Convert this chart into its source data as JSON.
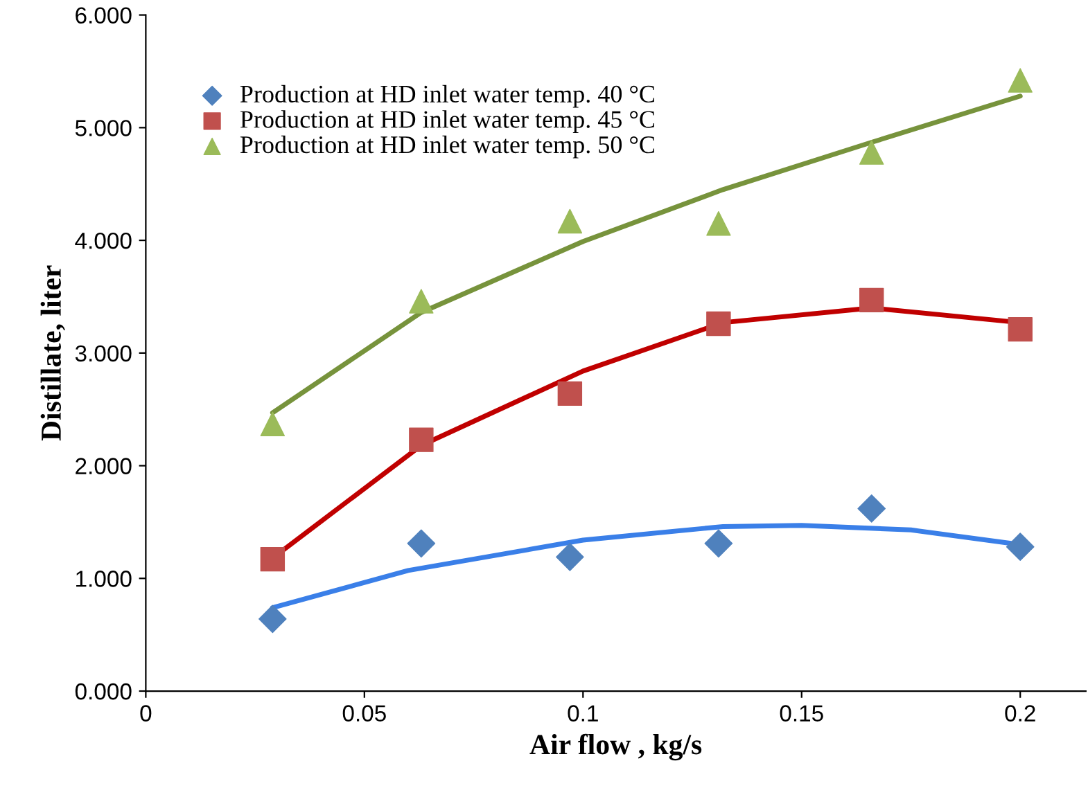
{
  "chart_data": {
    "type": "scatter",
    "xlabel": "Air flow , kg/s",
    "ylabel": "Distillate, liter",
    "x": [
      0.029,
      0.063,
      0.097,
      0.131,
      0.166,
      0.2
    ],
    "series": [
      {
        "name": "Production at HD inlet water temp. 40 °C",
        "color": "#4f81bd",
        "marker": "diamond",
        "values": [
          0.64,
          1.31,
          1.19,
          1.31,
          1.62,
          1.28
        ]
      },
      {
        "name": "Production at HD inlet water temp. 45 °C",
        "color": "#c0504d",
        "marker": "square",
        "values": [
          1.17,
          2.23,
          2.64,
          3.26,
          3.47,
          3.21
        ]
      },
      {
        "name": "Production at HD inlet water temp. 50 °C",
        "color": "#9bbb59",
        "marker": "triangle",
        "values": [
          2.37,
          3.46,
          4.17,
          4.15,
          4.78,
          5.42
        ]
      },
      {
        "type": "line",
        "color": "#3a7fe8",
        "marker": "none",
        "x": [
          0.029,
          0.06,
          0.1,
          0.132,
          0.15,
          0.175,
          0.2
        ],
        "values": [
          0.74,
          1.07,
          1.34,
          1.46,
          1.47,
          1.43,
          1.3
        ]
      },
      {
        "type": "line",
        "color": "#c00000",
        "marker": "none",
        "x": [
          0.029,
          0.063,
          0.1,
          0.132,
          0.166,
          0.2
        ],
        "values": [
          1.18,
          2.18,
          2.84,
          3.27,
          3.4,
          3.27
        ]
      },
      {
        "type": "line",
        "color": "#77933c",
        "marker": "none",
        "x": [
          0.029,
          0.063,
          0.1,
          0.132,
          0.166,
          0.2
        ],
        "values": [
          2.47,
          3.36,
          3.99,
          4.45,
          4.87,
          5.28
        ]
      }
    ],
    "xlim": [
      0,
      0.215
    ],
    "xticks": [
      0,
      0.05,
      0.1,
      0.15,
      0.2
    ],
    "ylim": [
      0,
      6
    ],
    "yticks": [
      {
        "value": 0,
        "label": "0.000"
      },
      {
        "value": 1,
        "label": "1.000"
      },
      {
        "value": 2,
        "label": "2.000"
      },
      {
        "value": 3,
        "label": "3.000"
      },
      {
        "value": 4,
        "label": "4.000"
      },
      {
        "value": 5,
        "label": "5.000"
      },
      {
        "value": 6,
        "label": "6.000"
      }
    ],
    "grid": false,
    "legend": "top left"
  }
}
